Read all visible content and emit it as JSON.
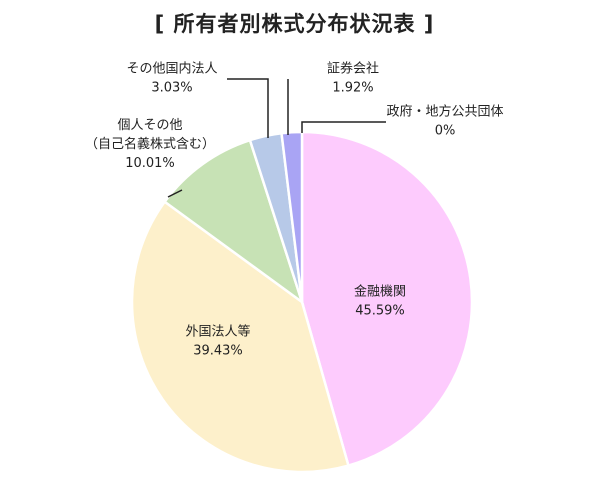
{
  "chart_data": {
    "type": "pie",
    "title": "[ 所有者別株式分布状況表 ]",
    "unit": "%",
    "slices": [
      {
        "label": [
          "金融機関"
        ],
        "value": 45.59,
        "value_label": "45.59%",
        "color": "#fdcbfd"
      },
      {
        "label": [
          "外国法人等"
        ],
        "value": 39.43,
        "value_label": "39.43%",
        "color": "#fdf0cb"
      },
      {
        "label": [
          "個人その他",
          "（自己名義株式含む）"
        ],
        "value": 10.01,
        "value_label": "10.01%",
        "color": "#c7e2b5"
      },
      {
        "label": [
          "その他国内法人"
        ],
        "value": 3.03,
        "value_label": "3.03%",
        "color": "#b7c9e8"
      },
      {
        "label": [
          "証券会社"
        ],
        "value": 1.92,
        "value_label": "1.92%",
        "color": "#a9a4f4"
      },
      {
        "label": [
          "政府・地方公共団体"
        ],
        "value": 0,
        "value_label": "0%",
        "color": "#cccccc"
      }
    ]
  }
}
